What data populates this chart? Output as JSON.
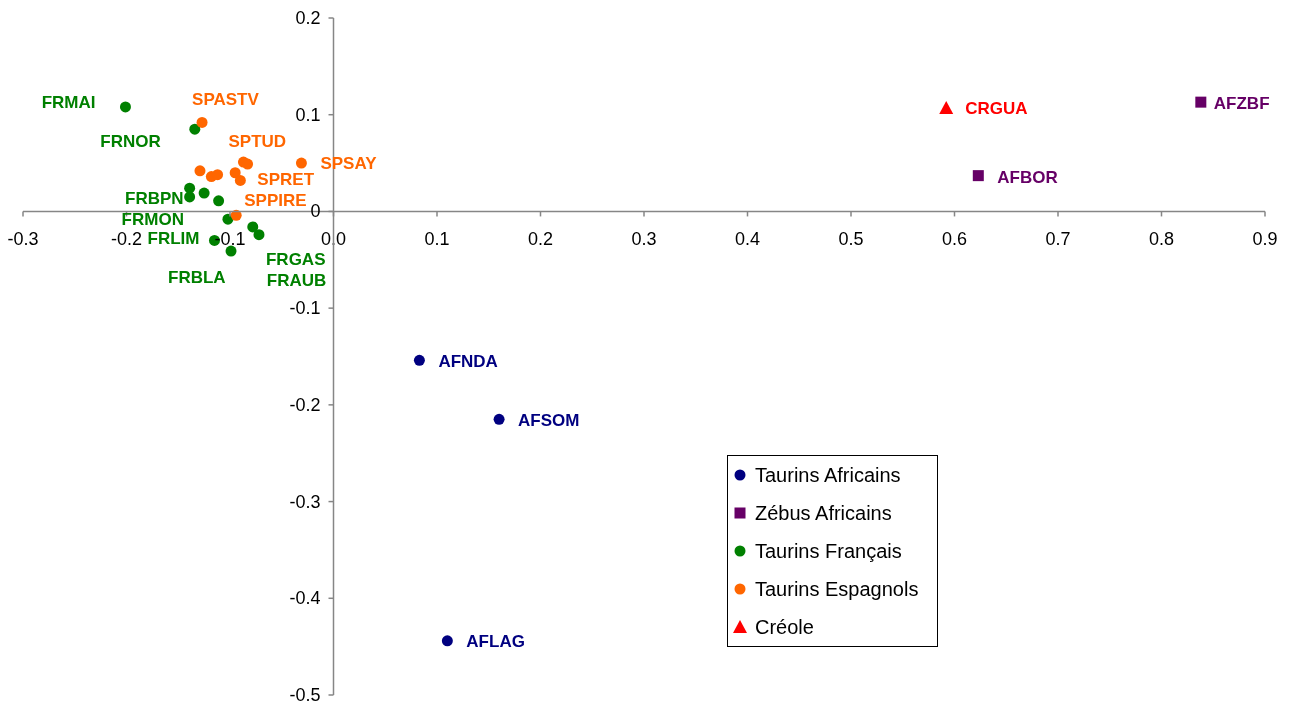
{
  "chart_data": {
    "type": "scatter",
    "xlim": [
      -0.3,
      0.9
    ],
    "xticks": [
      -0.3,
      -0.2,
      -0.1,
      {
        "value": 0,
        "label": "0.0"
      },
      0.1,
      0.2,
      0.3,
      0.4,
      0.5,
      0.6,
      0.7,
      0.8,
      0.9
    ],
    "ylim": [
      -0.5,
      0.2
    ],
    "yticks": [
      -0.5,
      -0.4,
      -0.3,
      -0.2,
      -0.1,
      0,
      0.1,
      0.2
    ],
    "legend": "bottom",
    "series": [
      {
        "name": "Taurins Africains",
        "color": "#000080",
        "marker": "circle",
        "x": [
          0.083,
          0.16,
          0.11
        ],
        "values": [
          -0.154,
          -0.215,
          -0.444
        ]
      },
      {
        "name": "Zébus Africains",
        "color": "#660066",
        "marker": "square",
        "x": [
          0.838,
          0.623
        ],
        "values": [
          0.113,
          0.037
        ]
      },
      {
        "name": "Taurins Français",
        "color": "#008000",
        "marker": "circle",
        "x": [
          -0.201,
          -0.134,
          -0.139,
          -0.139,
          -0.125,
          -0.111,
          -0.102,
          -0.078,
          -0.072,
          -0.115,
          -0.099
        ],
        "values": [
          0.108,
          0.085,
          0.024,
          0.015,
          0.019,
          0.011,
          -0.008,
          -0.016,
          -0.024,
          -0.03,
          -0.041
        ]
      },
      {
        "name": "Taurins Espagnols",
        "color": "#ff6600",
        "marker": "circle",
        "x": [
          -0.127,
          -0.031,
          -0.129,
          -0.118,
          -0.112,
          -0.095,
          -0.087,
          -0.083,
          -0.09,
          -0.094
        ],
        "values": [
          0.092,
          0.05,
          0.042,
          0.036,
          0.038,
          0.04,
          0.051,
          0.049,
          0.032,
          -0.004
        ]
      },
      {
        "name": "Créole",
        "color": "#ff0000",
        "marker": "triangle",
        "x": [
          0.592
        ],
        "values": [
          0.107
        ]
      }
    ],
    "annotations": [
      {
        "text": "AFNDA",
        "x": 0.083,
        "y": -0.154
      },
      {
        "text": "AFSOM",
        "x": 0.16,
        "y": -0.215
      },
      {
        "text": "AFLAG",
        "x": 0.11,
        "y": -0.444
      },
      {
        "text": "AFZBF",
        "x": 0.838,
        "y": 0.113
      },
      {
        "text": "AFBOR",
        "x": 0.623,
        "y": 0.037
      },
      {
        "text": "CRGUA",
        "x": 0.592,
        "y": 0.107
      },
      {
        "text": "FRMAI",
        "x": -0.201,
        "y": 0.108
      },
      {
        "text": "FRNOR",
        "x": -0.134,
        "y": 0.085
      },
      {
        "text": "FRBPN",
        "x": -0.111,
        "y": 0.011
      },
      {
        "text": "FRMON",
        "x": -0.102,
        "y": -0.008
      },
      {
        "text": "FRLIM",
        "x": -0.115,
        "y": -0.03
      },
      {
        "text": "FRBLA",
        "x": -0.099,
        "y": -0.041
      },
      {
        "text": "FRGAS",
        "x": -0.072,
        "y": -0.024
      },
      {
        "text": "FRAUB",
        "x": -0.078,
        "y": -0.016
      },
      {
        "text": "SPASTV",
        "x": -0.127,
        "y": 0.092
      },
      {
        "text": "SPSAY",
        "x": -0.031,
        "y": 0.05
      },
      {
        "text": "SPTUD",
        "x": -0.087,
        "y": 0.051
      },
      {
        "text": "SPRET",
        "x": -0.09,
        "y": 0.032
      },
      {
        "text": "SPPIRE",
        "x": -0.094,
        "y": -0.004
      }
    ]
  }
}
